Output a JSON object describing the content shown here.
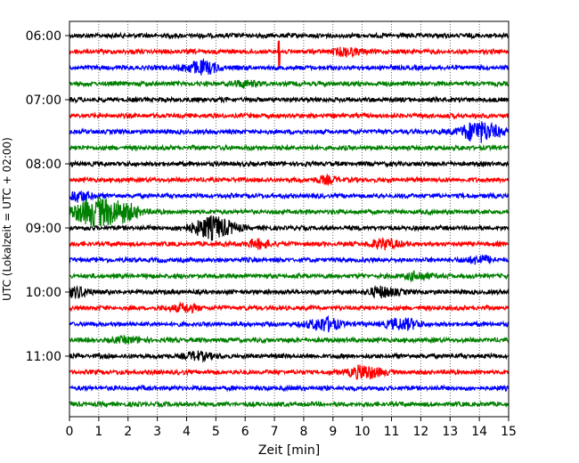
{
  "chart_data": {
    "type": "line",
    "subtype": "helicorder-seismogram",
    "xlabel": "Zeit  [min]",
    "ylabel": "UTC (Lokalzeit = UTC + 02:00)",
    "xlim": [
      0,
      15
    ],
    "x_ticks": [
      0,
      1,
      2,
      3,
      4,
      5,
      6,
      7,
      8,
      9,
      10,
      11,
      12,
      13,
      14,
      15
    ],
    "x_grid": "dotted vertical at every minute",
    "y_ticks": [
      {
        "label": "06:00",
        "trace": 0
      },
      {
        "label": "07:00",
        "trace": 4
      },
      {
        "label": "08:00",
        "trace": 8
      },
      {
        "label": "09:00",
        "trace": 12
      },
      {
        "label": "10:00",
        "trace": 16
      },
      {
        "label": "11:00",
        "trace": 20
      }
    ],
    "trace_minutes": 15,
    "colors": [
      "#000000",
      "#ff0000",
      "#0000ff",
      "#008000"
    ],
    "traces": [
      {
        "start": "06:00",
        "color": "#000000",
        "events": []
      },
      {
        "start": "06:15",
        "color": "#ff0000",
        "events": [
          {
            "t": 7.15,
            "amp": 14,
            "kind": "spike"
          },
          {
            "t": 9.5,
            "amp": 4
          }
        ]
      },
      {
        "start": "06:30",
        "color": "#0000ff",
        "events": [
          {
            "t": 4.5,
            "amp": 7
          }
        ]
      },
      {
        "start": "06:45",
        "color": "#008000",
        "events": [
          {
            "t": 6.0,
            "amp": 3
          }
        ]
      },
      {
        "start": "07:00",
        "color": "#000000",
        "events": []
      },
      {
        "start": "07:15",
        "color": "#ff0000",
        "events": []
      },
      {
        "start": "07:30",
        "color": "#0000ff",
        "events": [
          {
            "t": 14.0,
            "amp": 11
          }
        ]
      },
      {
        "start": "07:45",
        "color": "#008000",
        "events": []
      },
      {
        "start": "08:00",
        "color": "#000000",
        "events": []
      },
      {
        "start": "08:15",
        "color": "#ff0000",
        "events": [
          {
            "t": 8.8,
            "amp": 3
          }
        ]
      },
      {
        "start": "08:30",
        "color": "#0000ff",
        "events": [
          {
            "t": 0.3,
            "amp": 5
          }
        ]
      },
      {
        "start": "08:45",
        "color": "#008000",
        "events": [
          {
            "t": 0.8,
            "amp": 14
          },
          {
            "t": 1.8,
            "amp": 9
          }
        ]
      },
      {
        "start": "09:00",
        "color": "#000000",
        "events": [
          {
            "t": 4.9,
            "amp": 12
          }
        ]
      },
      {
        "start": "09:15",
        "color": "#ff0000",
        "events": [
          {
            "t": 6.5,
            "amp": 4
          },
          {
            "t": 10.8,
            "amp": 5
          }
        ]
      },
      {
        "start": "09:30",
        "color": "#0000ff",
        "events": [
          {
            "t": 14.0,
            "amp": 4
          }
        ]
      },
      {
        "start": "09:45",
        "color": "#008000",
        "events": [
          {
            "t": 11.9,
            "amp": 4
          }
        ]
      },
      {
        "start": "10:00",
        "color": "#000000",
        "events": [
          {
            "t": 0.2,
            "amp": 5
          },
          {
            "t": 10.7,
            "amp": 5
          }
        ]
      },
      {
        "start": "10:15",
        "color": "#ff0000",
        "events": [
          {
            "t": 3.9,
            "amp": 4
          }
        ]
      },
      {
        "start": "10:30",
        "color": "#0000ff",
        "events": [
          {
            "t": 8.7,
            "amp": 7
          },
          {
            "t": 11.4,
            "amp": 6
          }
        ]
      },
      {
        "start": "10:45",
        "color": "#008000",
        "events": [
          {
            "t": 2.0,
            "amp": 3
          }
        ]
      },
      {
        "start": "11:00",
        "color": "#000000",
        "events": [
          {
            "t": 4.4,
            "amp": 4
          }
        ]
      },
      {
        "start": "11:15",
        "color": "#ff0000",
        "events": [
          {
            "t": 10.1,
            "amp": 7
          }
        ]
      },
      {
        "start": "11:30",
        "color": "#0000ff",
        "events": []
      },
      {
        "start": "11:45",
        "color": "#008000",
        "events": []
      }
    ],
    "grid": true,
    "legend": "none"
  }
}
